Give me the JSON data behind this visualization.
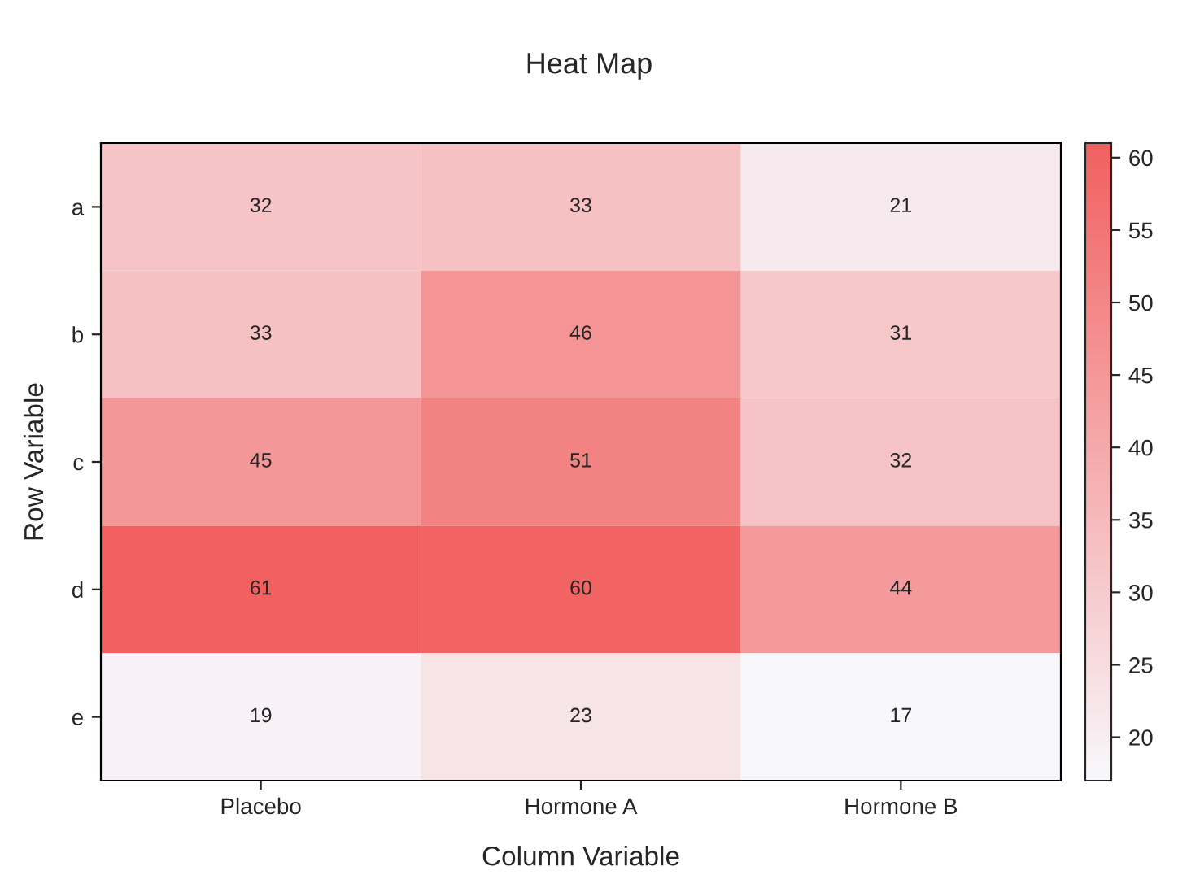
{
  "chart_data": {
    "type": "heatmap",
    "title": "Heat Map",
    "xlabel": "Column Variable",
    "ylabel": "Row Variable",
    "categories": [
      "Placebo",
      "Hormone A",
      "Hormone B"
    ],
    "y_categories": [
      "a",
      "b",
      "c",
      "d",
      "e"
    ],
    "cells": [
      [
        32,
        33,
        21
      ],
      [
        33,
        46,
        31
      ],
      [
        45,
        51,
        32
      ],
      [
        61,
        60,
        44
      ],
      [
        19,
        23,
        17
      ]
    ],
    "data_labels": true,
    "colors": [
      "#f8f8fc",
      "#f26060"
    ],
    "clim": [
      17,
      61
    ],
    "cticks": [
      20,
      25,
      30,
      35,
      40,
      45,
      50,
      55,
      60
    ]
  }
}
